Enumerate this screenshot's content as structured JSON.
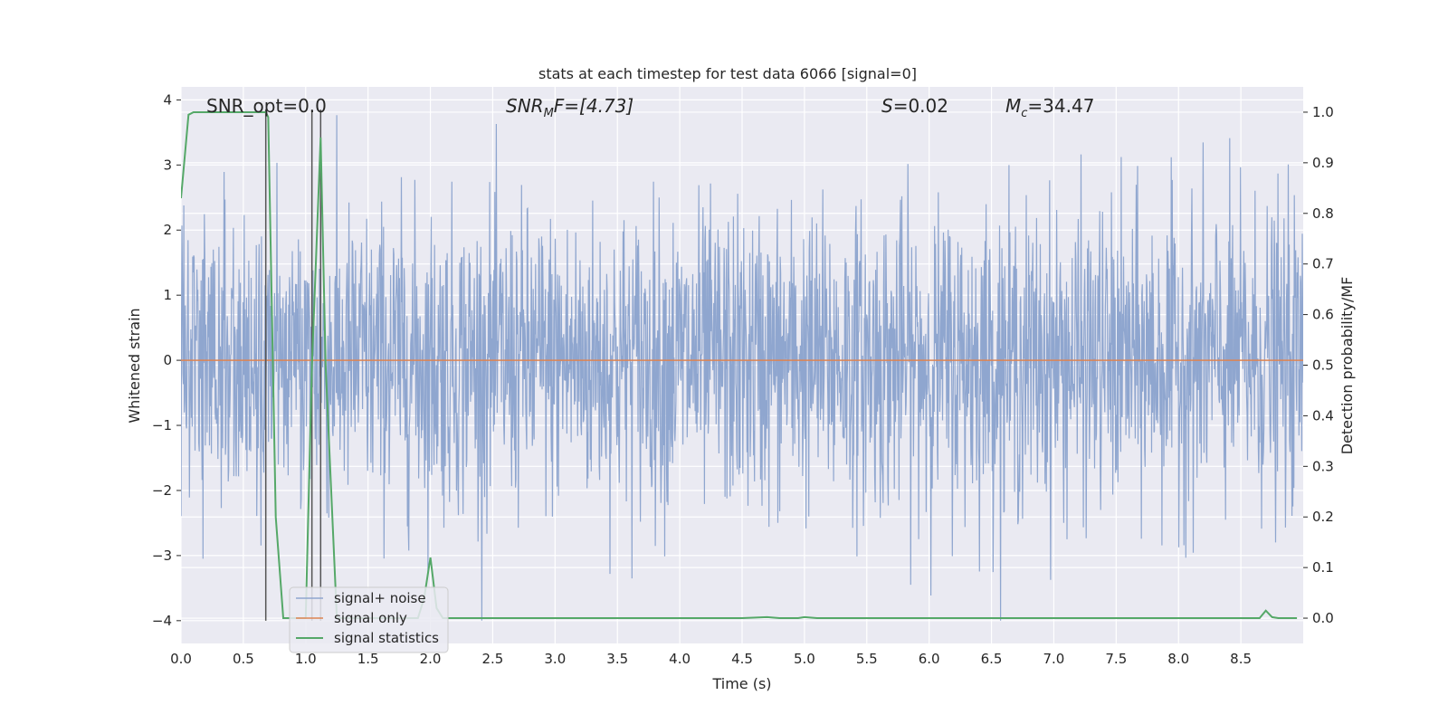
{
  "chart_data": {
    "type": "line",
    "title": "stats at each timestep for test data 6066 [signal=0]",
    "xlabel": "Time (s)",
    "ylabel_left": "Whitened strain",
    "ylabel_right": "Detection probability/MF",
    "xlim": [
      0.0,
      9.0
    ],
    "ylim_left": [
      -4.35,
      4.2
    ],
    "ylim_right": [
      -0.05,
      1.05
    ],
    "xticks": [
      "0.0",
      "0.5",
      "1.0",
      "1.5",
      "2.0",
      "2.5",
      "3.0",
      "3.5",
      "4.0",
      "4.5",
      "5.0",
      "5.5",
      "6.0",
      "6.5",
      "7.0",
      "7.5",
      "8.0",
      "8.5"
    ],
    "yticks_left": [
      "4",
      "3",
      "2",
      "1",
      "0",
      "−1",
      "−2",
      "−3",
      "−4"
    ],
    "yticks_right": [
      "1.0",
      "0.9",
      "0.8",
      "0.7",
      "0.6",
      "0.5",
      "0.4",
      "0.3",
      "0.2",
      "0.1",
      "0.0"
    ],
    "grid": true,
    "legend_placement": "lower-left",
    "annotations": {
      "snr_opt": "SNR_opt=0.0",
      "snr_mf_base": "SNR",
      "snr_mf_sub": "M",
      "snr_mf_rest": "F=[4.73]",
      "s_var": "S",
      "s_rest": "=0.02",
      "mc_base": "M",
      "mc_sub": "c",
      "mc_rest": "=34.47"
    },
    "series": [
      {
        "name": "signal+ noise",
        "color": "#8fa6cf",
        "description_values": "whitened noise, roughly ±2.5 with peaks near 3.8 and troughs near -4"
      },
      {
        "name": "signal only",
        "color": "#dd8452",
        "x": [
          0.0,
          9.0
        ],
        "y": [
          0.0,
          0.0
        ]
      },
      {
        "name": "signal statistics",
        "color": "#55a868",
        "axis": "right",
        "x": [
          0.0,
          0.06,
          0.1,
          0.2,
          0.3,
          0.4,
          0.5,
          0.6,
          0.68,
          0.7,
          0.76,
          0.82,
          0.9,
          1.0,
          1.05,
          1.12,
          1.16,
          1.25,
          1.3,
          1.5,
          1.7,
          1.9,
          1.95,
          2.0,
          2.05,
          2.1,
          3.0,
          4.0,
          4.5,
          4.7,
          4.8,
          4.95,
          5.0,
          5.1,
          6.0,
          7.0,
          8.0,
          8.65,
          8.7,
          8.75,
          8.8,
          8.95
        ],
        "y": [
          0.83,
          0.995,
          1.0,
          1.0,
          1.0,
          1.0,
          1.0,
          1.0,
          1.0,
          0.99,
          0.2,
          0.0,
          0.0,
          0.0,
          0.5,
          0.95,
          0.5,
          0.0,
          0.0,
          0.0,
          0.0,
          0.0,
          0.04,
          0.12,
          0.02,
          0.0,
          0.0,
          0.0,
          0.0,
          0.002,
          0.0,
          0.0,
          0.002,
          0.0,
          0.0,
          0.0,
          0.0,
          0.0,
          0.015,
          0.002,
          0.0,
          0.0
        ]
      }
    ],
    "vertical_lines": {
      "color": "#555555",
      "x": [
        0.68,
        1.05,
        1.12
      ],
      "y_left": [
        -4.0,
        3.85
      ]
    }
  }
}
